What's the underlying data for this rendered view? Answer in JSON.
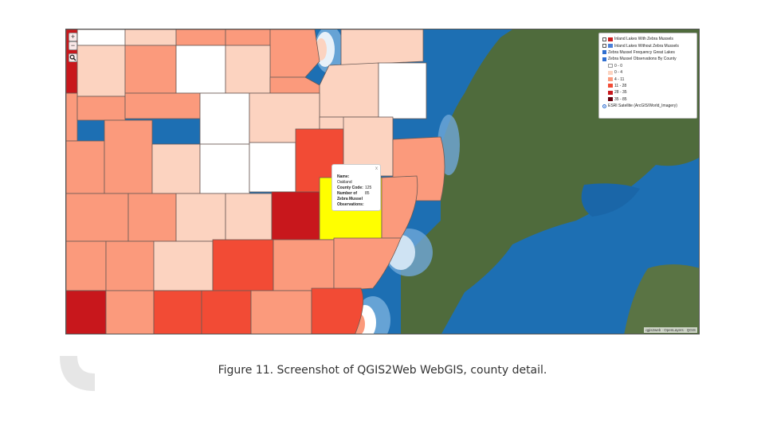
{
  "map": {
    "zoom_in": "+",
    "zoom_out": "−",
    "search_icon": "search-icon",
    "legend": {
      "items": [
        {
          "label": "Inland Lakes With Zebra Mussels",
          "checked": false,
          "swatch": "#cc1f1f"
        },
        {
          "label": "Inland Lakes Without Zebra Mussels",
          "checked": false,
          "swatch": "#4a7fd8"
        },
        {
          "label": "Zebra Mussel Frequency Great Lakes",
          "checked": true,
          "swatch": ""
        },
        {
          "label": "Zebra Mussel Observations By County",
          "checked": true,
          "swatch": ""
        }
      ],
      "classes": [
        {
          "label": "0 - 0",
          "color": "#ffffff"
        },
        {
          "label": "0 - 4",
          "color": "#fcd3c0"
        },
        {
          "label": "4 - 11",
          "color": "#fb9a7c"
        },
        {
          "label": "11 - 28",
          "color": "#f24b35"
        },
        {
          "label": "28 - 35",
          "color": "#c8171c"
        },
        {
          "label": "35 - 85",
          "color": "#67000d"
        }
      ],
      "basemap": "ESRI Satellite (ArcGIS/World_Imagery)"
    },
    "popup": {
      "close": "x",
      "name_label": "Name:",
      "name_value": "Oakland",
      "code_label": "County Code:",
      "code_value": "125",
      "obs_label": "Number of Zebra Mussel Observations:",
      "obs_value": "85"
    },
    "attribution": "qgis2web · OpenLayers · QGIS"
  },
  "caption": "Figure 11. Screenshot of QGIS2Web WebGIS, county detail.",
  "colors": {
    "water": "#1d6fb3",
    "land": "#4f6b3c",
    "highlight": "#ffff00"
  }
}
